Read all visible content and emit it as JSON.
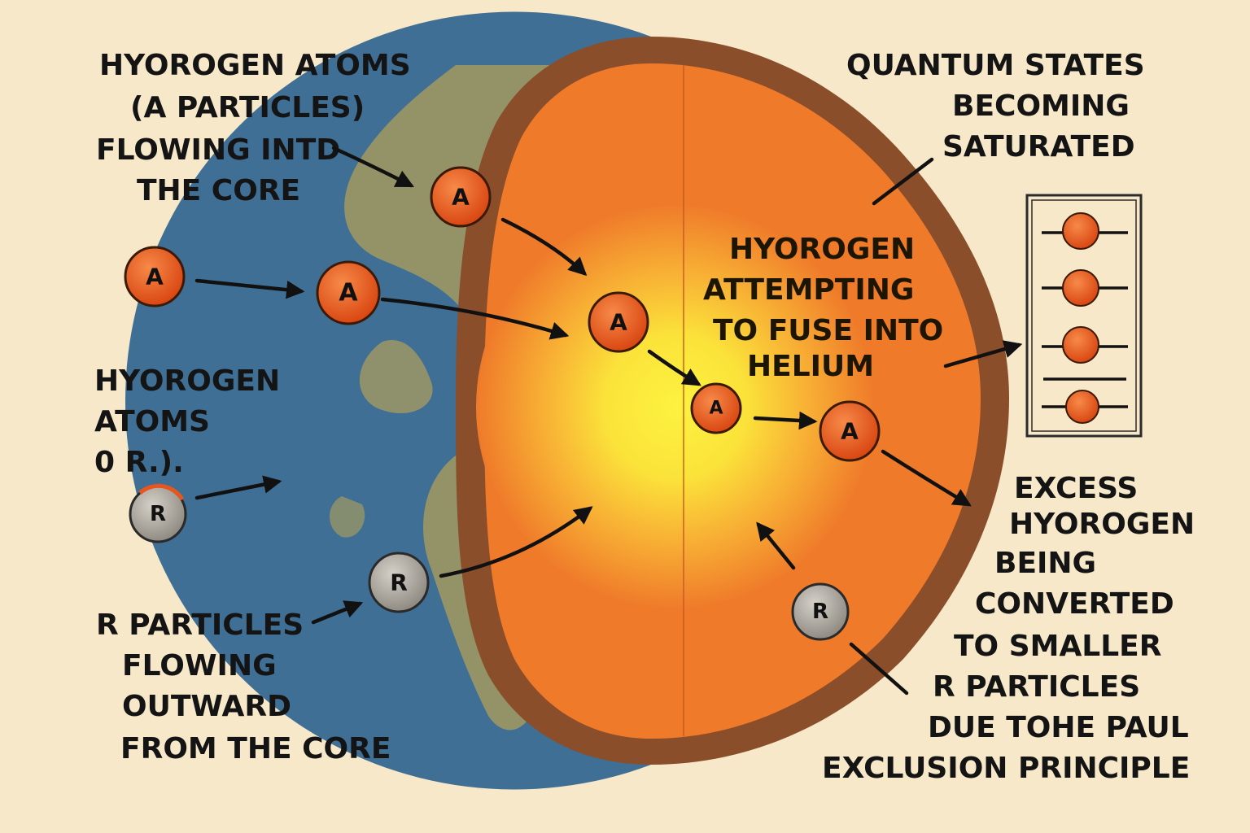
{
  "labels": {
    "top_left": [
      "HYOROGEN ATOMS",
      "(A PARTICLES)",
      "FLOWING INTD",
      "THE CORE"
    ],
    "mid_left": [
      "HYOROGEN",
      "ATOMS",
      "0 R.)."
    ],
    "bottom_left": [
      "R PARTICLES",
      "FLOWING",
      "OUTWARD",
      "FROM THE CORE"
    ],
    "top_right": [
      "QUANTUM STATES",
      "BECOMING",
      "SATURATED"
    ],
    "core": [
      "HYOROGEN",
      "ATTEMPTING",
      "TO FUSE INTO",
      "HELIUM"
    ],
    "bottom_right": [
      "EXCESS",
      "HYOROGEN",
      "BEING",
      "CONVERTED",
      "TO SMALLER",
      "R PARTICLES",
      "DUE TOHE PAUL",
      "EXCLUSION PRINCIPLE"
    ]
  },
  "particles": {
    "a_letter": "A",
    "r_letter": "R"
  },
  "colors": {
    "background": "#f6e8c8",
    "ocean": "#3f6f95",
    "land": "#a39a60",
    "mantle": "#ef7a2a",
    "crust": "#8a4e2a",
    "core": "#fbe33a",
    "a_particle": "#e8561e",
    "r_particle": "#a9a39a"
  }
}
